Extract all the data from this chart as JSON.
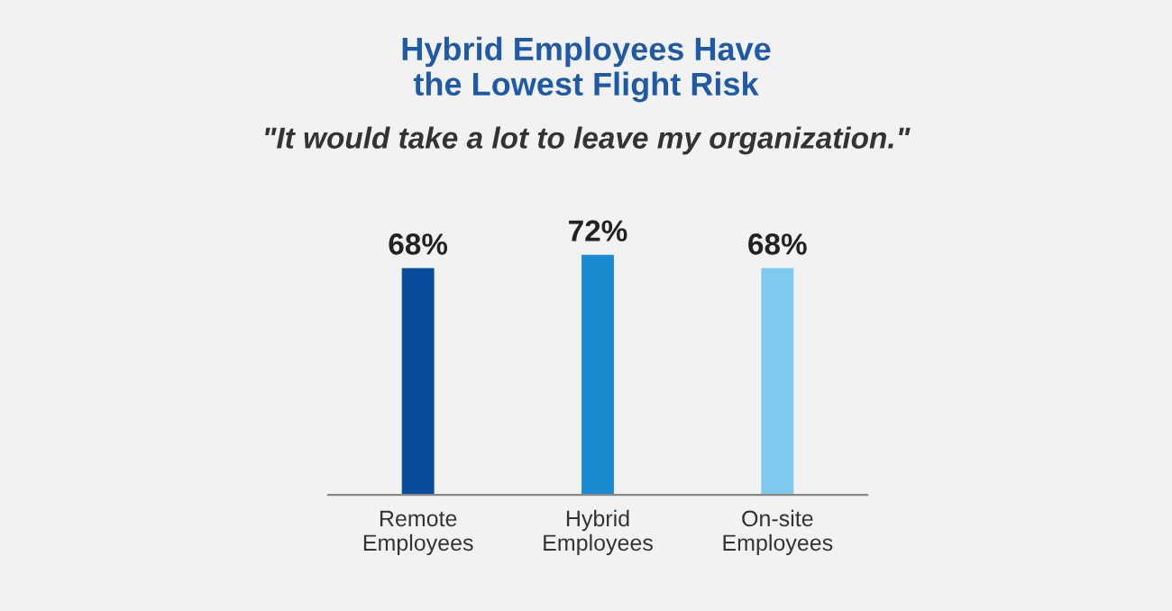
{
  "chart_data": {
    "type": "bar",
    "title": "Hybrid Employees Have\nthe Lowest Flight Risk",
    "subtitle": "\"It would take a lot to leave my organization.\"",
    "categories": [
      "Remote\nEmployees",
      "Hybrid\nEmployees",
      "On-site\nEmployees"
    ],
    "values": [
      68,
      72,
      68
    ],
    "colors": [
      "#0a4c9c",
      "#1a8bd0",
      "#7fc8ee"
    ],
    "value_labels": [
      "68%",
      "72%",
      "68%"
    ],
    "grid": false,
    "legend": false
  }
}
